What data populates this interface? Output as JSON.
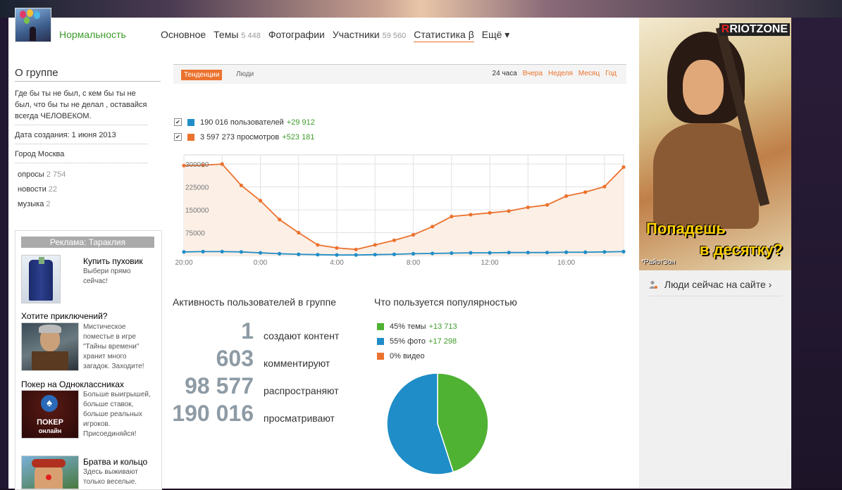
{
  "group": {
    "name": "Нормальность"
  },
  "nav": [
    {
      "label": "Основное",
      "count": ""
    },
    {
      "label": "Темы",
      "count": "5 448"
    },
    {
      "label": "Фотографии",
      "count": ""
    },
    {
      "label": "Участники",
      "count": "59 560"
    },
    {
      "label": "Статистика β",
      "count": ""
    },
    {
      "label": "Ещё ▾",
      "count": ""
    }
  ],
  "about": {
    "title": "О группе",
    "description": "Где бы ты не был, с кем бы ты не был, что бы ты не делал , оставайся всегда ЧЕЛОВЕКОМ.",
    "created": "Дата создания: 1 июня 2013",
    "city": "Город Москва",
    "links": [
      {
        "label": "опросы",
        "count": "2 754"
      },
      {
        "label": "новости",
        "count": "22"
      },
      {
        "label": "музыка",
        "count": "2"
      }
    ]
  },
  "ads": {
    "header": "Реклама: Тараклия",
    "items": [
      {
        "title": "Купить пуховик",
        "text": "Выбери прямо сейчас!"
      },
      {
        "title": "Хотите приключений?",
        "text": "Мистическое поместье в игре \"Тайны времени\" хранит много загадок. Заходите!"
      },
      {
        "title": "Покер на Одноклассниках",
        "text": "Больше выигрышей, больше ставок, больше реальных игроков. Присоединяйся!",
        "image_label_1": "ПОКЕР",
        "image_label_2": "онлайн"
      },
      {
        "title": "Братва и кольцо",
        "text": "Здесь выживают только веселые."
      }
    ]
  },
  "stats": {
    "tabs": {
      "active": "Тенденции",
      "other": "Люди"
    },
    "periods": [
      {
        "label": "24 часа",
        "current": true
      },
      {
        "label": "Вчера",
        "current": false
      },
      {
        "label": "Неделя",
        "current": false
      },
      {
        "label": "Месяц",
        "current": false
      },
      {
        "label": "Год",
        "current": false
      }
    ],
    "legend": [
      {
        "text": "190 016 пользователей",
        "delta": "+29 912",
        "color": "#1f8dc7",
        "checked": true
      },
      {
        "text": "3 597 273 просмотров",
        "delta": "+523 181",
        "color": "#eb722e",
        "checked": true
      }
    ]
  },
  "chart_data": [
    {
      "type": "line",
      "x_tick_labels": [
        "20:00",
        "0:00",
        "4:00",
        "8:00",
        "12:00",
        "16:00"
      ],
      "y_tick_labels": [
        "75000",
        "150000",
        "225000",
        "300000"
      ],
      "ylim": [
        0,
        330000
      ],
      "grid": true,
      "series": [
        {
          "name": "3 597 273 просмотров",
          "color": "#eb722e",
          "fill": "#fbefe6",
          "values": [
            295000,
            296000,
            300000,
            230000,
            180000,
            118000,
            75000,
            35000,
            25000,
            20000,
            35000,
            50000,
            68000,
            95000,
            128000,
            134000,
            140000,
            146000,
            158000,
            166000,
            195000,
            208000,
            226000,
            290000
          ]
        },
        {
          "name": "190 016 пользователей",
          "color": "#1f8dc7",
          "values": [
            12000,
            13000,
            13000,
            12000,
            9000,
            6000,
            4000,
            3000,
            2000,
            2000,
            3000,
            4000,
            6000,
            7000,
            8000,
            9000,
            9000,
            10000,
            10000,
            10000,
            11000,
            11000,
            12000,
            13000
          ]
        }
      ]
    },
    {
      "type": "pie",
      "title": "Что пользуется популярностью",
      "slices": [
        {
          "label": "45% темы",
          "value": 45,
          "delta": "+13 713",
          "color": "#4fb233"
        },
        {
          "label": "55% фото",
          "value": 55,
          "delta": "+17 298",
          "color": "#1f8dc7"
        },
        {
          "label": "0% видео",
          "value": 0,
          "delta": "",
          "color": "#eb722e"
        }
      ]
    }
  ],
  "activity": {
    "title": "Активность пользователей в группе",
    "rows": [
      {
        "number": "1",
        "label": "создают контент"
      },
      {
        "number": "603",
        "label": "комментируют"
      },
      {
        "number": "98 577",
        "label": "распространяют"
      },
      {
        "number": "190 016",
        "label": "просматривают"
      }
    ]
  },
  "banner": {
    "logo": "RIOTZONE",
    "slogan_line1": "Попадешь",
    "slogan_line2": "в  десятку?",
    "signature": "*РайотЗон"
  },
  "online": {
    "label": "Люди сейчас на сайте ›"
  }
}
